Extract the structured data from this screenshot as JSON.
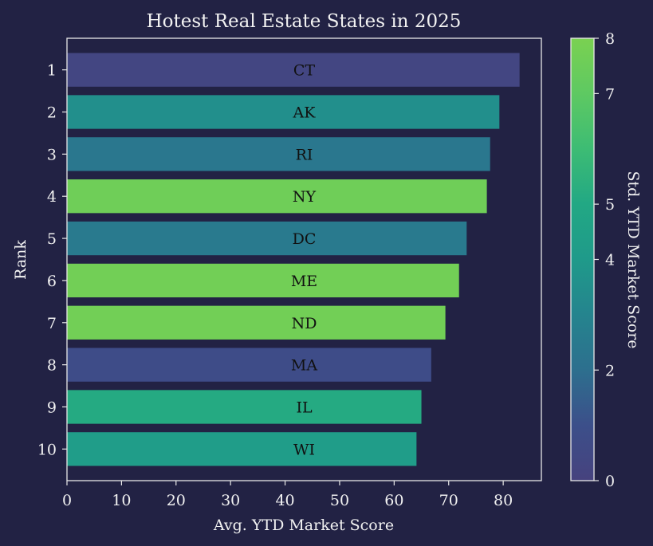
{
  "chart_data": {
    "type": "bar",
    "orientation": "horizontal",
    "title": "Hotest Real Estate States in 2025",
    "xlabel": "Avg. YTD Market Score",
    "ylabel": "Rank",
    "xlim": [
      0,
      87
    ],
    "xticks": [
      "0",
      "10",
      "20",
      "30",
      "40",
      "50",
      "60",
      "70",
      "80"
    ],
    "categories": [
      "1",
      "2",
      "3",
      "4",
      "5",
      "6",
      "7",
      "8",
      "9",
      "10"
    ],
    "bar_labels": [
      "CT",
      "AK",
      "RI",
      "NY",
      "DC",
      "ME",
      "ND",
      "MA",
      "IL",
      "WI"
    ],
    "values": [
      83.0,
      79.3,
      77.6,
      77.0,
      73.3,
      71.9,
      69.4,
      66.8,
      65.0,
      64.1
    ],
    "color_values": [
      0.3,
      3.5,
      2.4,
      7.6,
      2.5,
      7.7,
      7.7,
      0.8,
      5.1,
      4.2
    ],
    "grid": false,
    "colorbar": {
      "label": "Std. YTD Market Score",
      "range": [
        0,
        8
      ],
      "ticks": [
        "0",
        "2",
        "4",
        "5",
        "7",
        "8"
      ],
      "colors": [
        "#46427e",
        "#3c4f8a",
        "#2d6f8e",
        "#25848e",
        "#1f9a8a",
        "#22a884",
        "#3dbc74",
        "#5ec962",
        "#7ad151"
      ]
    }
  },
  "colors": {
    "background": "#222244",
    "text": "#f2f2f2",
    "axis": "#e8e8e8",
    "bar_label": "#111111"
  }
}
